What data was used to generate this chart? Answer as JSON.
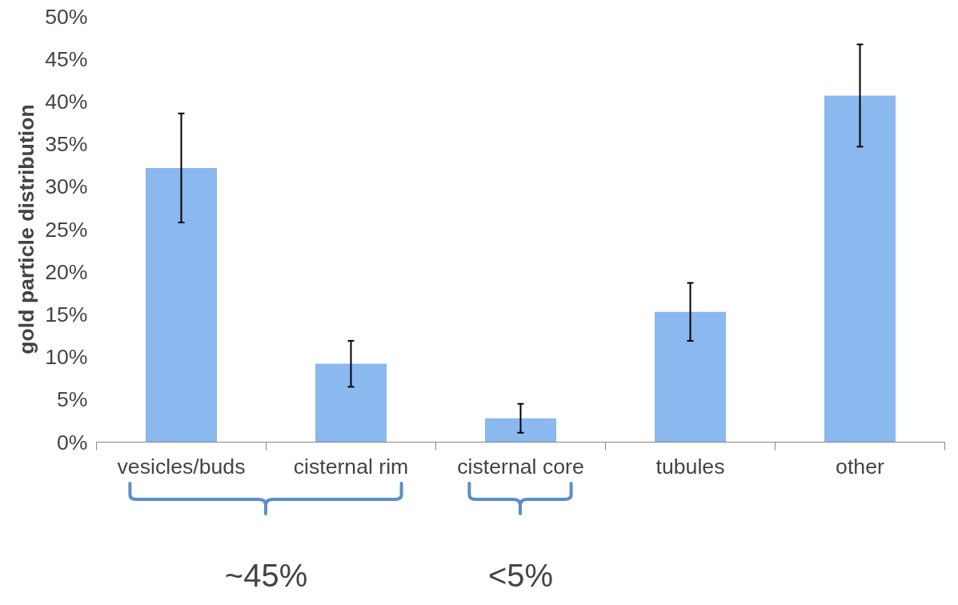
{
  "chart_data": {
    "type": "bar",
    "ylabel": "gold particle distribution",
    "categories": [
      "vesicles/buds",
      "cisternal rim",
      "cisternal core",
      "tubules",
      "other"
    ],
    "values": [
      32.2,
      9.2,
      2.8,
      15.3,
      40.7
    ],
    "errors": [
      6.4,
      2.7,
      1.7,
      3.4,
      6.0
    ],
    "color": "#8ab8ef",
    "ylim": [
      0,
      50
    ],
    "yticks": [
      {
        "value": 0,
        "label": "0%"
      },
      {
        "value": 5,
        "label": "5%"
      },
      {
        "value": 10,
        "label": "10%"
      },
      {
        "value": 15,
        "label": "15%"
      },
      {
        "value": 20,
        "label": "20%"
      },
      {
        "value": 25,
        "label": "25%"
      },
      {
        "value": 30,
        "label": "30%"
      },
      {
        "value": 35,
        "label": "35%"
      },
      {
        "value": 40,
        "label": "40%"
      },
      {
        "value": 45,
        "label": "45%"
      },
      {
        "value": 50,
        "label": "50%"
      }
    ],
    "grid": false,
    "annotations": [
      "~45%",
      "<5%"
    ]
  }
}
